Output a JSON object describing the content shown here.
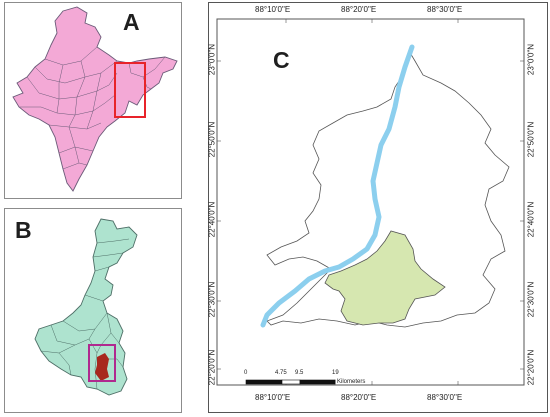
{
  "panels": {
    "a": {
      "letter": "A",
      "region_fill": "#f3a9d6",
      "boundary_color": "#6b5a78",
      "highlight_color": "#e8232a"
    },
    "b": {
      "letter": "B",
      "region_fill": "#aee3cf",
      "boundary_color": "#4d6e66",
      "highlight_color": "#b0298f",
      "study_area_color": "#a8281e"
    },
    "c": {
      "letter": "C",
      "river_color": "#8ccfee",
      "study_area_fill": "#d6e7b0",
      "boundary_color": "#555555"
    }
  },
  "grid": {
    "top_labels": [
      "88°10'0\"E",
      "88°20'0\"E",
      "88°30'0\"E"
    ],
    "bottom_labels": [
      "88°10'0\"E",
      "88°20'0\"E",
      "88°30'0\"E"
    ],
    "left_labels": [
      "23°0'0\"N",
      "22°50'0\"N",
      "22°40'0\"N",
      "22°30'0\"N",
      "22°20'0\"N"
    ],
    "right_labels": [
      "23°0'0\"N",
      "22°50'0\"N",
      "22°40'0\"N",
      "22°30'0\"N",
      "22°20'0\"N"
    ]
  },
  "scale_bar": {
    "labels": [
      "0",
      "4.75",
      "9.5",
      "19"
    ],
    "unit": "Kilometers"
  }
}
